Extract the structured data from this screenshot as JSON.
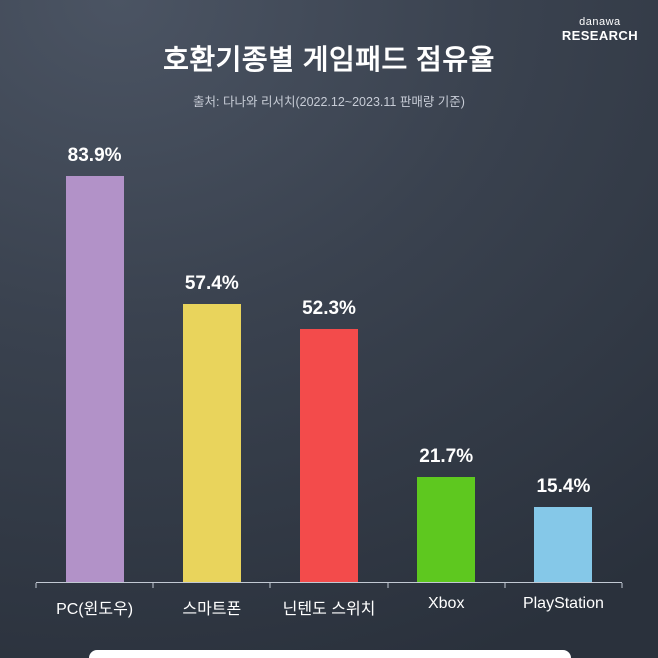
{
  "header": {
    "logo_top": "danawa",
    "logo_bottom": "RESEARCH"
  },
  "title": "호환기종별 게임패드 점유율",
  "subtitle": "출처: 다나와 리서치(2022.12~2023.11 판매량 기준)",
  "chart_data": {
    "type": "bar",
    "title": "호환기종별 게임패드 점유율",
    "subtitle": "출처: 다나와 리서치(2022.12~2023.11 판매량 기준)",
    "categories": [
      "PC(윈도우)",
      "스마트폰",
      "닌텐도 스위치",
      "Xbox",
      "PlayStation"
    ],
    "values": [
      83.9,
      57.4,
      52.3,
      21.7,
      15.4
    ],
    "value_labels": [
      "83.9%",
      "57.4%",
      "52.3%",
      "21.7%",
      "15.4%"
    ],
    "bar_colors": [
      "#b292c8",
      "#e9d45c",
      "#f34b4b",
      "#5ec81f",
      "#85c8e8"
    ],
    "xlabel": "",
    "ylabel": "",
    "ylim": [
      0,
      90
    ],
    "grid": false,
    "legend": false,
    "background_dark": "#2a313c",
    "text_color": "#ffffff",
    "axis_color": "#c2c9d3"
  }
}
